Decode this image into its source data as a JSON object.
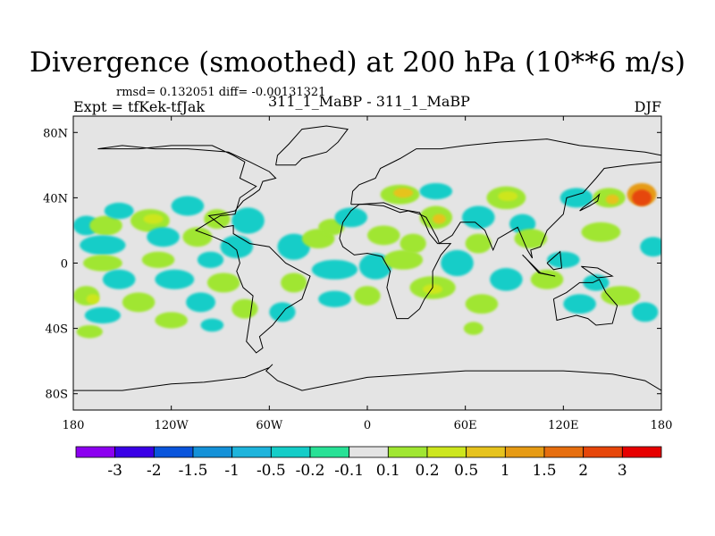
{
  "chart_data": {
    "type": "heatmap",
    "title": "Divergence (smoothed) at 200 hPa (10**6 m/s)",
    "stats": "rmsd= 0.132051 diff= -0.00131321",
    "left_label": "Expt = tfKek-tfJak",
    "center_label": "311_1_MaBP - 311_1_MaBP",
    "right_label": "DJF",
    "x_ticks": [
      {
        "value": -180,
        "label": "180"
      },
      {
        "value": -120,
        "label": "120W"
      },
      {
        "value": -60,
        "label": "60W"
      },
      {
        "value": 0,
        "label": "0"
      },
      {
        "value": 60,
        "label": "60E"
      },
      {
        "value": 120,
        "label": "120E"
      },
      {
        "value": 180,
        "label": "180"
      }
    ],
    "y_ticks": [
      {
        "value": 80,
        "label": "80N"
      },
      {
        "value": 40,
        "label": "40N"
      },
      {
        "value": 0,
        "label": "0"
      },
      {
        "value": -40,
        "label": "40S"
      },
      {
        "value": -80,
        "label": "80S"
      }
    ],
    "xlim": [
      -180,
      180
    ],
    "ylim": [
      -90,
      90
    ],
    "background_color": "#e4e4e4",
    "colorbar": {
      "labels": [
        "-3",
        "-2",
        "-1.5",
        "-1",
        "-0.5",
        "-0.2",
        "-0.1",
        "0.1",
        "0.2",
        "0.5",
        "1",
        "1.5",
        "2",
        "3"
      ],
      "colors": [
        "#8c00f0",
        "#3a00e6",
        "#0a55dc",
        "#1491d8",
        "#1eb4dc",
        "#14cdc8",
        "#28e196",
        "#e4e4e4",
        "#a0e632",
        "#cde61e",
        "#e6c31e",
        "#e69b14",
        "#e66e0f",
        "#e6460a",
        "#e60000"
      ]
    },
    "blobs": [
      {
        "lon": -172,
        "lat": 23,
        "rx": 8,
        "ry": 6,
        "color": "#14cdc8"
      },
      {
        "lon": -160,
        "lat": 23,
        "rx": 10,
        "ry": 6,
        "color": "#a0e632"
      },
      {
        "lon": -152,
        "lat": 32,
        "rx": 9,
        "ry": 5,
        "color": "#14cdc8"
      },
      {
        "lon": -133,
        "lat": 26,
        "rx": 12,
        "ry": 7,
        "color": "#a0e632"
      },
      {
        "lon": -131,
        "lat": 27,
        "rx": 6,
        "ry": 3,
        "color": "#cde61e"
      },
      {
        "lon": -110,
        "lat": 35,
        "rx": 10,
        "ry": 6,
        "color": "#14cdc8"
      },
      {
        "lon": -73,
        "lat": 26,
        "rx": 10,
        "ry": 8,
        "color": "#14cdc8"
      },
      {
        "lon": -92,
        "lat": 27,
        "rx": 8,
        "ry": 6,
        "color": "#a0e632"
      },
      {
        "lon": -162,
        "lat": 11,
        "rx": 14,
        "ry": 6,
        "color": "#14cdc8"
      },
      {
        "lon": -125,
        "lat": 16,
        "rx": 10,
        "ry": 6,
        "color": "#14cdc8"
      },
      {
        "lon": -104,
        "lat": 16,
        "rx": 9,
        "ry": 6,
        "color": "#a0e632"
      },
      {
        "lon": -80,
        "lat": 10,
        "rx": 10,
        "ry": 7,
        "color": "#14cdc8"
      },
      {
        "lon": -162,
        "lat": 0,
        "rx": 12,
        "ry": 5,
        "color": "#a0e632"
      },
      {
        "lon": -128,
        "lat": 2,
        "rx": 10,
        "ry": 5,
        "color": "#a0e632"
      },
      {
        "lon": -96,
        "lat": 2,
        "rx": 8,
        "ry": 5,
        "color": "#14cdc8"
      },
      {
        "lon": -152,
        "lat": -10,
        "rx": 10,
        "ry": 6,
        "color": "#14cdc8"
      },
      {
        "lon": -118,
        "lat": -10,
        "rx": 12,
        "ry": 6,
        "color": "#14cdc8"
      },
      {
        "lon": -88,
        "lat": -12,
        "rx": 10,
        "ry": 6,
        "color": "#a0e632"
      },
      {
        "lon": -172,
        "lat": -20,
        "rx": 8,
        "ry": 6,
        "color": "#a0e632"
      },
      {
        "lon": -168,
        "lat": -22,
        "rx": 4,
        "ry": 3,
        "color": "#cde61e"
      },
      {
        "lon": -140,
        "lat": -24,
        "rx": 10,
        "ry": 6,
        "color": "#a0e632"
      },
      {
        "lon": -102,
        "lat": -24,
        "rx": 9,
        "ry": 6,
        "color": "#14cdc8"
      },
      {
        "lon": -75,
        "lat": -28,
        "rx": 8,
        "ry": 6,
        "color": "#a0e632"
      },
      {
        "lon": -162,
        "lat": -32,
        "rx": 11,
        "ry": 5,
        "color": "#14cdc8"
      },
      {
        "lon": -120,
        "lat": -35,
        "rx": 10,
        "ry": 5,
        "color": "#a0e632"
      },
      {
        "lon": -95,
        "lat": -38,
        "rx": 7,
        "ry": 4,
        "color": "#14cdc8"
      },
      {
        "lon": -170,
        "lat": -42,
        "rx": 8,
        "ry": 4,
        "color": "#a0e632"
      },
      {
        "lon": -45,
        "lat": 10,
        "rx": 10,
        "ry": 8,
        "color": "#14cdc8"
      },
      {
        "lon": -30,
        "lat": 15,
        "rx": 10,
        "ry": 6,
        "color": "#a0e632"
      },
      {
        "lon": -22,
        "lat": 22,
        "rx": 8,
        "ry": 5,
        "color": "#a0e632"
      },
      {
        "lon": -10,
        "lat": 28,
        "rx": 10,
        "ry": 6,
        "color": "#14cdc8"
      },
      {
        "lon": -20,
        "lat": -4,
        "rx": 14,
        "ry": 6,
        "color": "#14cdc8"
      },
      {
        "lon": -45,
        "lat": -12,
        "rx": 8,
        "ry": 6,
        "color": "#a0e632"
      },
      {
        "lon": -20,
        "lat": -22,
        "rx": 10,
        "ry": 5,
        "color": "#14cdc8"
      },
      {
        "lon": -52,
        "lat": -30,
        "rx": 8,
        "ry": 6,
        "color": "#14cdc8"
      },
      {
        "lon": 0,
        "lat": -20,
        "rx": 8,
        "ry": 6,
        "color": "#a0e632"
      },
      {
        "lon": 10,
        "lat": 17,
        "rx": 10,
        "ry": 6,
        "color": "#a0e632"
      },
      {
        "lon": 5,
        "lat": -2,
        "rx": 10,
        "ry": 8,
        "color": "#14cdc8"
      },
      {
        "lon": 20,
        "lat": 42,
        "rx": 12,
        "ry": 6,
        "color": "#a0e632"
      },
      {
        "lon": 22,
        "lat": 43,
        "rx": 6,
        "ry": 3,
        "color": "#e6c31e"
      },
      {
        "lon": 42,
        "lat": 44,
        "rx": 10,
        "ry": 5,
        "color": "#14cdc8"
      },
      {
        "lon": 42,
        "lat": 28,
        "rx": 10,
        "ry": 7,
        "color": "#a0e632"
      },
      {
        "lon": 44,
        "lat": 27,
        "rx": 4,
        "ry": 3,
        "color": "#e6c31e"
      },
      {
        "lon": 28,
        "lat": 12,
        "rx": 8,
        "ry": 6,
        "color": "#a0e632"
      },
      {
        "lon": 22,
        "lat": 2,
        "rx": 12,
        "ry": 6,
        "color": "#a0e632"
      },
      {
        "lon": 55,
        "lat": 0,
        "rx": 10,
        "ry": 8,
        "color": "#14cdc8"
      },
      {
        "lon": 40,
        "lat": -15,
        "rx": 14,
        "ry": 7,
        "color": "#a0e632"
      },
      {
        "lon": 40,
        "lat": -16,
        "rx": 6,
        "ry": 3,
        "color": "#cde61e"
      },
      {
        "lon": 68,
        "lat": 12,
        "rx": 8,
        "ry": 6,
        "color": "#a0e632"
      },
      {
        "lon": 68,
        "lat": 28,
        "rx": 10,
        "ry": 7,
        "color": "#14cdc8"
      },
      {
        "lon": 85,
        "lat": 40,
        "rx": 12,
        "ry": 7,
        "color": "#a0e632"
      },
      {
        "lon": 86,
        "lat": 41,
        "rx": 6,
        "ry": 3,
        "color": "#cde61e"
      },
      {
        "lon": 95,
        "lat": 24,
        "rx": 8,
        "ry": 6,
        "color": "#14cdc8"
      },
      {
        "lon": 100,
        "lat": 15,
        "rx": 10,
        "ry": 6,
        "color": "#a0e632"
      },
      {
        "lon": 85,
        "lat": -10,
        "rx": 10,
        "ry": 7,
        "color": "#14cdc8"
      },
      {
        "lon": 70,
        "lat": -25,
        "rx": 10,
        "ry": 6,
        "color": "#a0e632"
      },
      {
        "lon": 65,
        "lat": -40,
        "rx": 6,
        "ry": 4,
        "color": "#a0e632"
      },
      {
        "lon": 110,
        "lat": -10,
        "rx": 10,
        "ry": 6,
        "color": "#a0e632"
      },
      {
        "lon": 120,
        "lat": 2,
        "rx": 10,
        "ry": 5,
        "color": "#14cdc8"
      },
      {
        "lon": 128,
        "lat": 40,
        "rx": 10,
        "ry": 6,
        "color": "#14cdc8"
      },
      {
        "lon": 143,
        "lat": 19,
        "rx": 12,
        "ry": 6,
        "color": "#a0e632"
      },
      {
        "lon": 148,
        "lat": 40,
        "rx": 10,
        "ry": 6,
        "color": "#a0e632"
      },
      {
        "lon": 150,
        "lat": 39,
        "rx": 4,
        "ry": 3,
        "color": "#e6c31e"
      },
      {
        "lon": 168,
        "lat": 42,
        "rx": 9,
        "ry": 7,
        "color": "#e69b14"
      },
      {
        "lon": 168,
        "lat": 40,
        "rx": 6,
        "ry": 5,
        "color": "#e6460a"
      },
      {
        "lon": 175,
        "lat": 10,
        "rx": 8,
        "ry": 6,
        "color": "#14cdc8"
      },
      {
        "lon": 130,
        "lat": -25,
        "rx": 10,
        "ry": 6,
        "color": "#14cdc8"
      },
      {
        "lon": 155,
        "lat": -20,
        "rx": 12,
        "ry": 6,
        "color": "#a0e632"
      },
      {
        "lon": 170,
        "lat": -30,
        "rx": 8,
        "ry": 6,
        "color": "#14cdc8"
      },
      {
        "lon": 140,
        "lat": -12,
        "rx": 8,
        "ry": 5,
        "color": "#14cdc8"
      }
    ],
    "coastlines": [
      [
        [
          -165,
          70
        ],
        [
          -140,
          70
        ],
        [
          -120,
          72
        ],
        [
          -95,
          72
        ],
        [
          -82,
          66
        ],
        [
          -75,
          62
        ],
        [
          -78,
          52
        ],
        [
          -68,
          47
        ],
        [
          -78,
          40
        ],
        [
          -81,
          30
        ],
        [
          -90,
          29
        ],
        [
          -97,
          25
        ],
        [
          -105,
          20
        ],
        [
          -94,
          16
        ],
        [
          -85,
          12
        ],
        [
          -80,
          8
        ],
        [
          -78,
          0
        ],
        [
          -80,
          -5
        ],
        [
          -76,
          -15
        ],
        [
          -70,
          -20
        ],
        [
          -72,
          -35
        ],
        [
          -74,
          -48
        ],
        [
          -68,
          -55
        ],
        [
          -64,
          -52
        ],
        [
          -66,
          -45
        ],
        [
          -58,
          -38
        ],
        [
          -50,
          -28
        ],
        [
          -40,
          -22
        ],
        [
          -35,
          -8
        ],
        [
          -50,
          0
        ],
        [
          -60,
          10
        ],
        [
          -72,
          12
        ],
        [
          -82,
          18
        ],
        [
          -82,
          23
        ],
        [
          -88,
          22
        ],
        [
          -97,
          29
        ],
        [
          -90,
          30
        ],
        [
          -81,
          32
        ],
        [
          -76,
          38
        ],
        [
          -70,
          42
        ],
        [
          -66,
          45
        ],
        [
          -64,
          50
        ],
        [
          -56,
          52
        ],
        [
          -60,
          56
        ],
        [
          -72,
          62
        ],
        [
          -85,
          68
        ],
        [
          -110,
          70
        ],
        [
          -130,
          70
        ],
        [
          -150,
          72
        ],
        [
          -165,
          70
        ]
      ],
      [
        [
          -56,
          60
        ],
        [
          -55,
          66
        ],
        [
          -48,
          73
        ],
        [
          -40,
          82
        ],
        [
          -25,
          84
        ],
        [
          -12,
          82
        ],
        [
          -18,
          74
        ],
        [
          -25,
          68
        ],
        [
          -40,
          64
        ],
        [
          -44,
          60
        ],
        [
          -56,
          60
        ]
      ],
      [
        [
          -10,
          36
        ],
        [
          -9,
          44
        ],
        [
          -5,
          48
        ],
        [
          5,
          52
        ],
        [
          8,
          58
        ],
        [
          20,
          64
        ],
        [
          30,
          70
        ],
        [
          45,
          70
        ],
        [
          60,
          72
        ],
        [
          80,
          74
        ],
        [
          110,
          76
        ],
        [
          130,
          72
        ],
        [
          150,
          70
        ],
        [
          170,
          68
        ],
        [
          180,
          66
        ],
        [
          180,
          62
        ],
        [
          160,
          60
        ],
        [
          145,
          58
        ],
        [
          140,
          52
        ],
        [
          132,
          43
        ],
        [
          122,
          40
        ],
        [
          120,
          30
        ],
        [
          110,
          20
        ],
        [
          106,
          10
        ],
        [
          100,
          8
        ],
        [
          101,
          3
        ],
        [
          98,
          8
        ],
        [
          92,
          22
        ],
        [
          80,
          15
        ],
        [
          77,
          8
        ],
        [
          72,
          20
        ],
        [
          66,
          25
        ],
        [
          57,
          25
        ],
        [
          52,
          17
        ],
        [
          44,
          12
        ],
        [
          43,
          15
        ],
        [
          36,
          28
        ],
        [
          32,
          30
        ],
        [
          25,
          32
        ],
        [
          20,
          31
        ],
        [
          10,
          35
        ],
        [
          0,
          36
        ],
        [
          -10,
          36
        ]
      ],
      [
        [
          -17,
          15
        ],
        [
          -15,
          25
        ],
        [
          -10,
          32
        ],
        [
          -5,
          36
        ],
        [
          10,
          37
        ],
        [
          20,
          33
        ],
        [
          32,
          31
        ],
        [
          35,
          25
        ],
        [
          38,
          18
        ],
        [
          43,
          12
        ],
        [
          51,
          12
        ],
        [
          45,
          5
        ],
        [
          40,
          -5
        ],
        [
          40,
          -15
        ],
        [
          35,
          -22
        ],
        [
          32,
          -28
        ],
        [
          25,
          -34
        ],
        [
          18,
          -34
        ],
        [
          15,
          -25
        ],
        [
          12,
          -15
        ],
        [
          14,
          -5
        ],
        [
          9,
          4
        ],
        [
          0,
          6
        ],
        [
          -8,
          5
        ],
        [
          -15,
          10
        ],
        [
          -17,
          15
        ]
      ],
      [
        [
          114,
          -22
        ],
        [
          122,
          -18
        ],
        [
          130,
          -12
        ],
        [
          138,
          -12
        ],
        [
          142,
          -10
        ],
        [
          146,
          -18
        ],
        [
          153,
          -26
        ],
        [
          150,
          -37
        ],
        [
          140,
          -38
        ],
        [
          135,
          -34
        ],
        [
          128,
          -32
        ],
        [
          116,
          -35
        ],
        [
          114,
          -22
        ]
      ],
      [
        [
          -180,
          -78
        ],
        [
          -150,
          -78
        ],
        [
          -120,
          -74
        ],
        [
          -100,
          -73
        ],
        [
          -75,
          -70
        ],
        [
          -60,
          -64
        ],
        [
          -58,
          -62
        ],
        [
          -62,
          -66
        ],
        [
          -55,
          -72
        ],
        [
          -40,
          -78
        ],
        [
          -20,
          -74
        ],
        [
          0,
          -70
        ],
        [
          30,
          -68
        ],
        [
          60,
          -66
        ],
        [
          90,
          -66
        ],
        [
          120,
          -66
        ],
        [
          150,
          -68
        ],
        [
          170,
          -72
        ],
        [
          180,
          -78
        ]
      ],
      [
        [
          95,
          5
        ],
        [
          106,
          -6
        ],
        [
          115,
          -8
        ],
        [
          105,
          -6
        ],
        [
          97,
          3
        ],
        [
          95,
          5
        ]
      ],
      [
        [
          110,
          0
        ],
        [
          118,
          7
        ],
        [
          119,
          -3
        ],
        [
          114,
          -4
        ],
        [
          110,
          0
        ]
      ],
      [
        [
          131,
          -2
        ],
        [
          141,
          -3
        ],
        [
          150,
          -8
        ],
        [
          141,
          -9
        ],
        [
          131,
          -2
        ]
      ],
      [
        [
          130,
          32
        ],
        [
          136,
          35
        ],
        [
          141,
          38
        ],
        [
          142,
          42
        ],
        [
          140,
          40
        ],
        [
          132,
          34
        ],
        [
          130,
          32
        ]
      ]
    ]
  }
}
